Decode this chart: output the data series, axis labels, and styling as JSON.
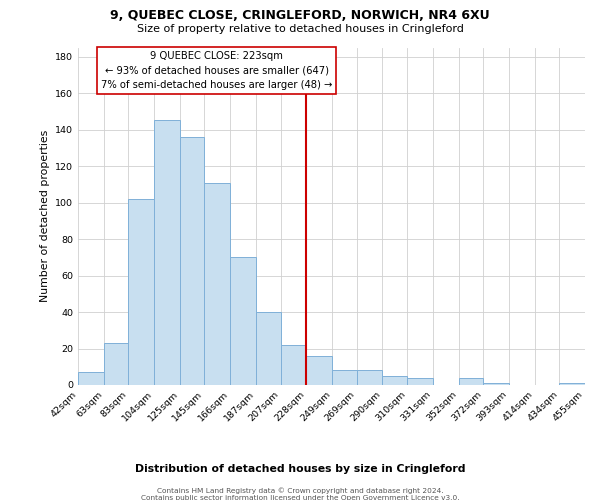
{
  "title": "9, QUEBEC CLOSE, CRINGLEFORD, NORWICH, NR4 6XU",
  "subtitle": "Size of property relative to detached houses in Cringleford",
  "xlabel": "Distribution of detached houses by size in Cringleford",
  "ylabel": "Number of detached properties",
  "footer_line1": "Contains HM Land Registry data © Crown copyright and database right 2024.",
  "footer_line2": "Contains public sector information licensed under the Open Government Licence v3.0.",
  "bin_labels": [
    "42sqm",
    "63sqm",
    "83sqm",
    "104sqm",
    "125sqm",
    "145sqm",
    "166sqm",
    "187sqm",
    "207sqm",
    "228sqm",
    "249sqm",
    "269sqm",
    "290sqm",
    "310sqm",
    "331sqm",
    "352sqm",
    "372sqm",
    "393sqm",
    "414sqm",
    "434sqm",
    "455sqm"
  ],
  "bar_values": [
    7,
    23,
    102,
    145,
    136,
    111,
    70,
    40,
    22,
    16,
    8,
    8,
    5,
    4,
    0,
    4,
    1,
    0,
    0,
    1
  ],
  "bin_edges": [
    42,
    63,
    83,
    104,
    125,
    145,
    166,
    187,
    207,
    228,
    249,
    269,
    290,
    310,
    331,
    352,
    372,
    393,
    414,
    434,
    455
  ],
  "property_line_x": 228,
  "bar_color": "#c8dff0",
  "bar_edgecolor": "#7fb0d8",
  "vline_color": "#cc0000",
  "box_facecolor": "white",
  "box_edgecolor": "#cc0000",
  "annotation_title": "9 QUEBEC CLOSE: 223sqm",
  "annotation_line1": "← 93% of detached houses are smaller (647)",
  "annotation_line2": "7% of semi-detached houses are larger (48) →",
  "ylim": [
    0,
    185
  ],
  "yticks": [
    0,
    20,
    40,
    60,
    80,
    100,
    120,
    140,
    160,
    180
  ],
  "background_color": "#ffffff",
  "grid_color": "#d0d0d0"
}
